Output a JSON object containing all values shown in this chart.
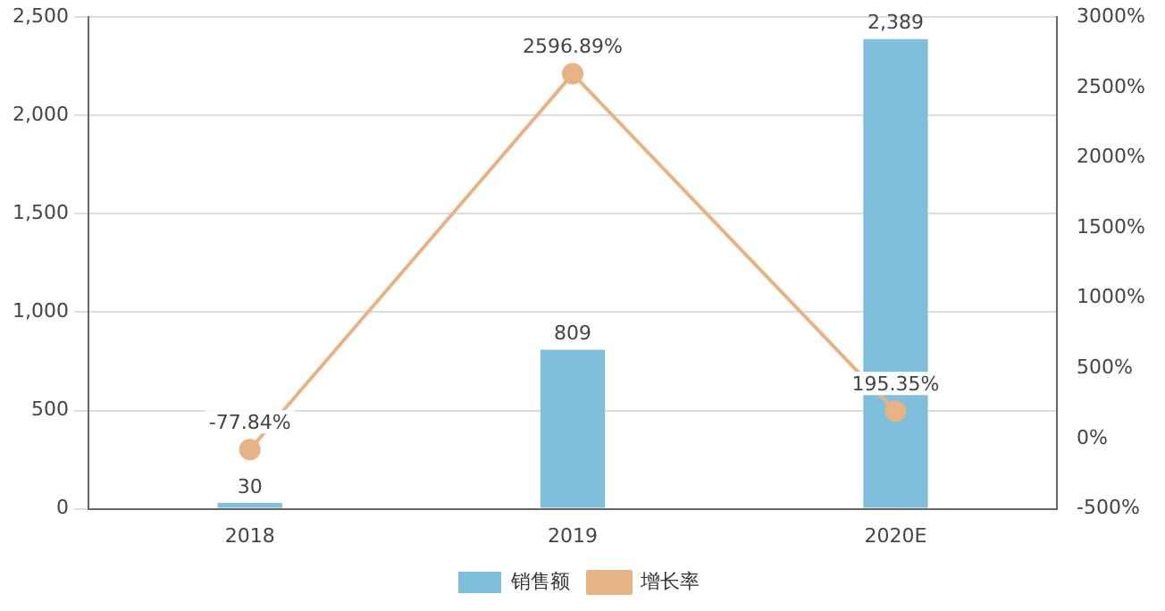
{
  "chart_data": {
    "type": "bar",
    "categories": [
      "2018",
      "2019",
      "2020E"
    ],
    "series": [
      {
        "name": "销售额",
        "color": "#7fbfdb",
        "values": [
          30,
          809,
          2389
        ],
        "value_labels": [
          "30",
          "809",
          "2,389"
        ]
      },
      {
        "name": "增长率",
        "type": "line",
        "axis": "y2",
        "color": "#e8b384",
        "values": [
          -77.84,
          2596.89,
          195.35
        ],
        "value_labels": [
          "-77.84%",
          "2596.89%",
          "195.35%"
        ]
      }
    ],
    "ylim": [
      0,
      2500
    ],
    "yticks": [
      0,
      500,
      {
        "value": 1000,
        "label": "1,000"
      },
      {
        "value": 1500,
        "label": "1,500"
      },
      {
        "value": 2000,
        "label": "2,000"
      },
      {
        "value": 2500,
        "label": "2,500"
      }
    ],
    "y2lim": [
      -500,
      3000
    ],
    "y2ticks": [
      {
        "value": -500,
        "label": "-500%"
      },
      {
        "value": 0,
        "label": "0%"
      },
      {
        "value": 500,
        "label": "500%"
      },
      {
        "value": 1000,
        "label": "1000%"
      },
      {
        "value": 1500,
        "label": "1500%"
      },
      {
        "value": 2000,
        "label": "2000%"
      },
      {
        "value": 2500,
        "label": "2500%"
      },
      {
        "value": 3000,
        "label": "3000%"
      }
    ],
    "grid": "y",
    "legend": "bottom",
    "marker": "circle",
    "line_style": "solid"
  }
}
